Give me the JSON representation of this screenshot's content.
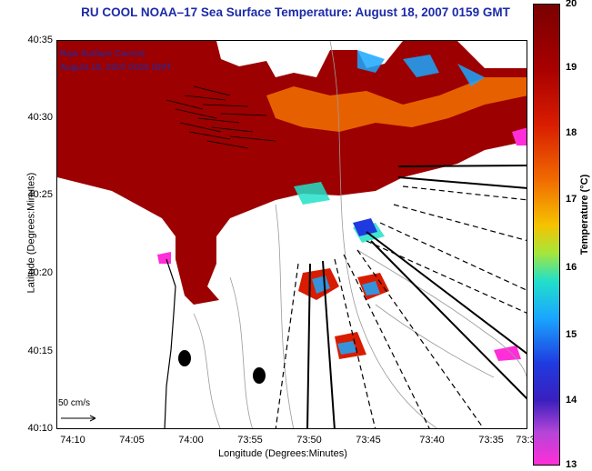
{
  "title": "RU COOL  NOAA–17  Sea Surface Temperature:  August 18, 2007 0159 GMT",
  "legend": {
    "line1": "Raw Surface Current",
    "line2": "August 18, 2007 0100 GMT"
  },
  "scale_label": "50 cm/s",
  "x_axis": {
    "label": "Longitude (Degrees:Minutes)",
    "ticks": [
      "74:10",
      "74:05",
      "74:00",
      "73:55",
      "73:50",
      "73:45",
      "73:40",
      "73:35",
      "73:3"
    ]
  },
  "y_axis": {
    "label": "Latitude (Degrees:Minutes)",
    "ticks": [
      "40:35",
      "40:30",
      "40:25",
      "40:20",
      "40:15",
      "40:10"
    ]
  },
  "colorbar": {
    "label": "Temperature (°C)",
    "ticks": [
      "20",
      "19",
      "18",
      "17",
      "16",
      "15",
      "14",
      "13"
    ],
    "range": [
      13,
      20
    ]
  },
  "colors": {
    "title": "#1c2aa8",
    "warm": "#9c0000",
    "land": "#ffffff"
  }
}
